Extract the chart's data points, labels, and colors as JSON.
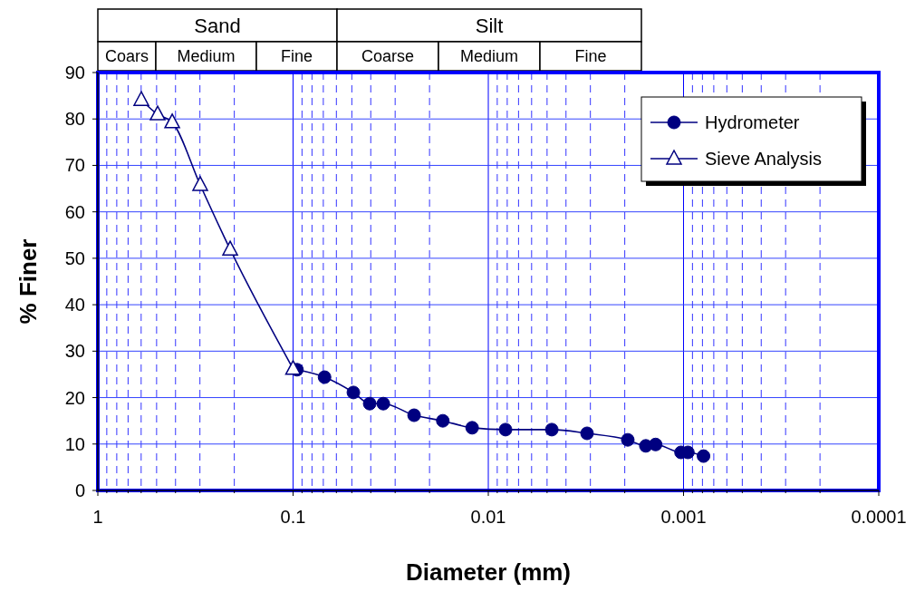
{
  "chart_data": {
    "type": "line",
    "xlabel": "Diameter (mm)",
    "ylabel": "% Finer",
    "log": "x",
    "xlim": [
      1,
      0.0001
    ],
    "xticks": [
      1,
      {
        "value": 0.9,
        "label": null
      },
      {
        "value": 0.8,
        "label": null
      },
      {
        "value": 0.7,
        "label": null
      },
      {
        "value": 0.6,
        "label": null
      },
      {
        "value": 0.5,
        "label": null
      },
      {
        "value": 0.4,
        "label": null
      },
      {
        "value": 0.3,
        "label": null
      },
      {
        "value": 0.2,
        "label": null
      },
      0.1,
      {
        "value": 0.09,
        "label": null
      },
      {
        "value": 0.08,
        "label": null
      },
      {
        "value": 0.07,
        "label": null
      },
      {
        "value": 0.06,
        "label": null
      },
      {
        "value": 0.05,
        "label": null
      },
      {
        "value": 0.04,
        "label": null
      },
      {
        "value": 0.03,
        "label": null
      },
      {
        "value": 0.02,
        "label": null
      },
      0.01,
      {
        "value": 0.009,
        "label": null
      },
      {
        "value": 0.008,
        "label": null
      },
      {
        "value": 0.007,
        "label": null
      },
      {
        "value": 0.006,
        "label": null
      },
      {
        "value": 0.005,
        "label": null
      },
      {
        "value": 0.004,
        "label": null
      },
      {
        "value": 0.003,
        "label": null
      },
      {
        "value": 0.002,
        "label": null
      },
      0.001,
      {
        "value": 0.0009,
        "label": null
      },
      {
        "value": 0.0008,
        "label": null
      },
      {
        "value": 0.0007,
        "label": null
      },
      {
        "value": 0.0006,
        "label": null
      },
      {
        "value": 0.0005,
        "label": null
      },
      {
        "value": 0.0004,
        "label": null
      },
      {
        "value": 0.0003,
        "label": null
      },
      {
        "value": 0.0002,
        "label": null
      },
      0.0001
    ],
    "ylim": [
      0,
      90
    ],
    "yticks": [
      0,
      10,
      20,
      30,
      40,
      50,
      60,
      70,
      80,
      90
    ],
    "grid": true,
    "legend": "top right",
    "series": [
      {
        "name": "Hydrometer",
        "color": "#000080",
        "marker": "circle",
        "x": [
          0.0955,
          0.069,
          0.0491,
          0.0405,
          0.0345,
          0.024,
          0.0171,
          0.0121,
          0.00816,
          0.00473,
          0.00312,
          0.00193,
          0.00156,
          0.00139,
          0.00103,
          0.00095,
          0.00079
        ],
        "values": [
          26,
          24.4,
          21.1,
          18.7,
          18.7,
          16.2,
          15,
          13.5,
          13.1,
          13.1,
          12.3,
          10.9,
          9.6,
          9.9,
          8.2,
          8.2,
          7.4
        ]
      },
      {
        "name": "Sieve Analysis",
        "color": "#000080",
        "marker": "triangle",
        "x": [
          0.599,
          0.494,
          0.416,
          0.299,
          0.21,
          0.1
        ],
        "values": [
          84.1,
          81,
          79.3,
          65.8,
          51.9,
          26.2
        ]
      }
    ],
    "annotations": [
      "Sand",
      "Silt",
      "Coars",
      "Medium",
      "Fine",
      "Coarse",
      "Medium",
      "Fine"
    ]
  }
}
